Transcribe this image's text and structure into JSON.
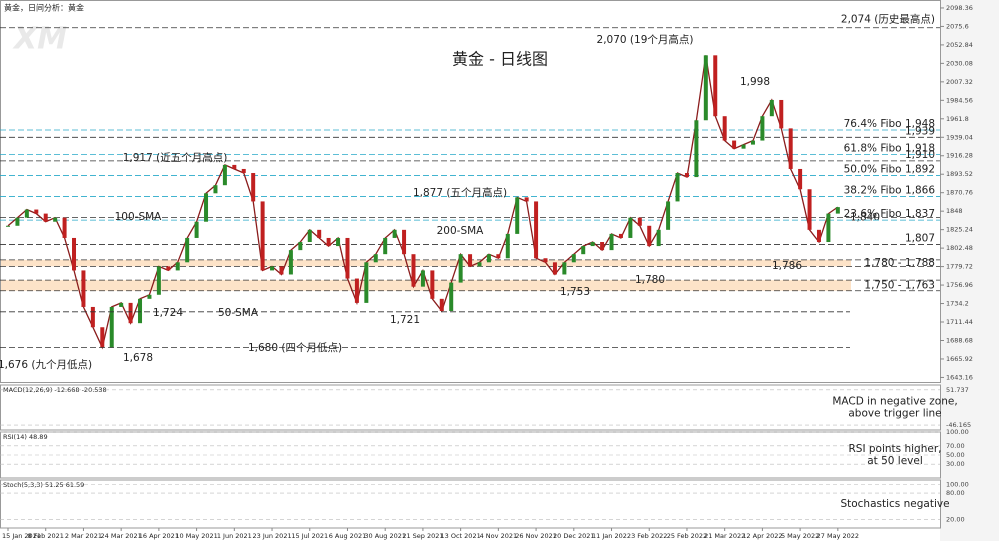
{
  "header": "黄金，日间分析：黄金",
  "logo": "XM",
  "chart_data": {
    "type": "line",
    "title": "黄金 - 日线图",
    "categories": [
      "15 Jan 2021",
      null,
      null,
      null,
      "8 Feb 2021",
      null,
      null,
      null,
      "2 Mar 2021",
      null,
      null,
      null,
      "24 Mar 2021",
      null,
      null,
      null,
      "16 Apr 2021",
      null,
      null,
      null,
      "10 May 2021",
      null,
      null,
      null,
      "1 Jun 2021",
      null,
      null,
      null,
      "23 Jun 2021",
      null,
      null,
      null,
      "15 Jul 2021",
      null,
      null,
      null,
      "6 Aug 2021",
      null,
      null,
      null,
      "30 Aug 2021",
      null,
      null,
      null,
      "21 Sep 2021",
      null,
      null,
      null,
      "13 Oct 2021",
      null,
      null,
      null,
      "4 Nov 2021",
      null,
      null,
      null,
      "26 Nov 2021",
      null,
      null,
      null,
      "20 Dec 2021",
      null,
      null,
      null,
      "11 Jan 2022",
      null,
      null,
      null,
      "3 Feb 2022",
      null,
      null,
      null,
      "25 Feb 2022",
      null,
      null,
      null,
      "21 Mar 2022",
      null,
      null,
      null,
      "12 Apr 2022",
      null,
      null,
      null,
      "5 May 2022",
      null,
      null,
      null,
      "27 May 2022"
    ],
    "values": [
      1830,
      1840,
      1850,
      1845,
      1835,
      1840,
      1815,
      1775,
      1730,
      1705,
      1680,
      1730,
      1735,
      1710,
      1740,
      1745,
      1780,
      1775,
      1785,
      1815,
      1835,
      1870,
      1880,
      1905,
      1900,
      1895,
      1860,
      1775,
      1780,
      1770,
      1800,
      1810,
      1825,
      1815,
      1805,
      1815,
      1765,
      1735,
      1785,
      1795,
      1815,
      1825,
      1795,
      1755,
      1775,
      1740,
      1725,
      1760,
      1795,
      1780,
      1785,
      1795,
      1790,
      1820,
      1865,
      1860,
      1790,
      1785,
      1770,
      1785,
      1795,
      1805,
      1810,
      1800,
      1820,
      1815,
      1840,
      1830,
      1805,
      1825,
      1860,
      1895,
      1890,
      1960,
      2040,
      1965,
      1935,
      1925,
      1930,
      1935,
      1965,
      1985,
      1950,
      1900,
      1875,
      1825,
      1810,
      1845,
      1853
    ],
    "color": "#8a1c1c",
    "ylim": [
      1640,
      2102
    ],
    "yticks": [
      1643.16,
      1665.92,
      1688.68,
      1711.44,
      1734.2,
      1756.96,
      1779.72,
      1802.48,
      1825.24,
      1848,
      1870.76,
      1893.52,
      1916.28,
      1939.04,
      1961.8,
      1984.56,
      2007.32,
      2030.08,
      2052.84,
      2075.6,
      2098.36
    ],
    "levels": [
      {
        "label": "2,074 (历史最高点)",
        "value": 2074,
        "color": "#3a6fd8"
      },
      {
        "label": "76.4% Fibo 1,948",
        "value": 1948,
        "color": "#27a9c9"
      },
      {
        "label": "1,939",
        "value": 1939,
        "color": "#1a1a8c"
      },
      {
        "label": "61.8% Fibo 1,918",
        "value": 1918,
        "color": "#27a9c9"
      },
      {
        "label": "1,910",
        "value": 1910,
        "color": "#1a1a8c"
      },
      {
        "label": "50.0% Fibo 1,892",
        "value": 1892,
        "color": "#27a9c9"
      },
      {
        "label": "38.2% Fibo 1,866",
        "value": 1866,
        "color": "#27a9c9"
      },
      {
        "label": "1,840",
        "value": 1840,
        "color": "#1a3fd8"
      },
      {
        "label": "23.6% Fibo 1,837",
        "value": 1837,
        "color": "#27a9c9"
      },
      {
        "label": "1,807",
        "value": 1807,
        "color": "#d02020"
      }
    ],
    "bands": [
      {
        "label": "1,780 - 1,788",
        "low": 1780,
        "high": 1788,
        "color": "#d02020",
        "fill": "#fde3c8"
      },
      {
        "label": "1,750 - 1,763",
        "low": 1750,
        "high": 1763,
        "color": "#d02020",
        "fill": "#fde3c8"
      }
    ],
    "annotations": [
      {
        "text": "2,070 (19个月高点)"
      },
      {
        "text": "1,998"
      },
      {
        "text": "1,917 (近五个月高点)"
      },
      {
        "text": "1,877 (五个月高点)"
      },
      {
        "text": "100-SMA",
        "color": "#2fb82f"
      },
      {
        "text": "200-SMA",
        "color": "#1a1a9c"
      },
      {
        "text": "1,724",
        "value": 1724
      },
      {
        "text": "50-SMA",
        "color": "#c8955a"
      },
      {
        "text": "1,721"
      },
      {
        "text": "1,753"
      },
      {
        "text": "1,780"
      },
      {
        "text": "1,786"
      },
      {
        "text": "1,676 (九个月低点)"
      },
      {
        "text": "1,678"
      },
      {
        "text": "1,680 (四个月低点)",
        "value": 1680
      }
    ]
  },
  "indicators": [
    {
      "name": "MACD(12,26,9) -12.668 -20.538",
      "comment": [
        "MACD in negative zone,",
        "above trigger line"
      ],
      "ylim": [
        -60,
        65
      ],
      "yticks": [
        51.737,
        -46.165
      ]
    },
    {
      "name": "RSI(14) 48.89",
      "comment": [
        "RSI points higher,",
        "at 50 level"
      ],
      "ylim": [
        0,
        100
      ],
      "yticks": [
        {
          "value": 100,
          "label": "100.00"
        },
        {
          "value": 70,
          "label": "70.00"
        },
        {
          "value": 50,
          "label": "50.00"
        },
        {
          "value": 30,
          "label": "30.00"
        }
      ]
    },
    {
      "name": "Stoch(5,3,3) 51.25 61.59",
      "comment": [
        "Stochastics negative"
      ],
      "ylim": [
        0,
        110
      ],
      "yticks": [
        {
          "value": 100,
          "label": "100.00"
        },
        {
          "value": 80,
          "label": "80.00"
        },
        {
          "value": 20,
          "label": "20.00"
        }
      ]
    }
  ]
}
